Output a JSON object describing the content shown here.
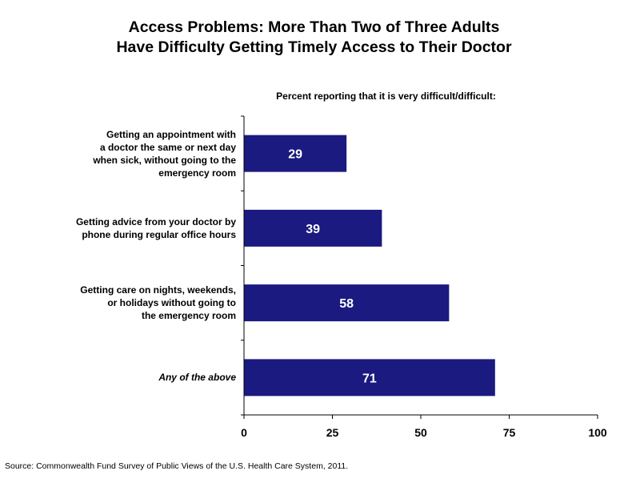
{
  "title_line1": "Access Problems: More Than Two of Three Adults",
  "title_line2": "Have Difficulty Getting Timely Access to Their Doctor",
  "subtitle": "Percent reporting that it is very difficult/difficult:",
  "source": "Source: Commonwealth Fund Survey of Public Views of the U.S. Health Care System, 2011.",
  "colors": {
    "bar": "#1a1a80",
    "bar_text": "#ffffff",
    "axis": "#000000"
  },
  "chart_data": {
    "type": "bar",
    "orientation": "horizontal",
    "categories": [
      "Getting an appointment with a doctor the same or next day when sick, without going to the emergency room",
      "Getting advice from your doctor by phone during regular office hours",
      "Getting care on nights, weekends, or holidays without going to the emergency room",
      "Any of the above"
    ],
    "category_lines": [
      [
        "Getting an appointment with",
        "a doctor the same or next day",
        "when sick, without going to the",
        "emergency room"
      ],
      [
        "Getting advice from your doctor by",
        "phone during regular office hours"
      ],
      [
        "Getting care on nights, weekends,",
        "or holidays without going to",
        "the emergency room"
      ],
      [
        "Any of the above"
      ]
    ],
    "values": [
      29,
      39,
      58,
      71
    ],
    "data_labels": [
      "29",
      "39",
      "58",
      "71"
    ],
    "xlim": [
      0,
      100
    ],
    "xticks": [
      0,
      25,
      50,
      75,
      100
    ],
    "xtick_labels": [
      "0",
      "25",
      "50",
      "75",
      "100"
    ],
    "grid": false,
    "legend": "none"
  }
}
